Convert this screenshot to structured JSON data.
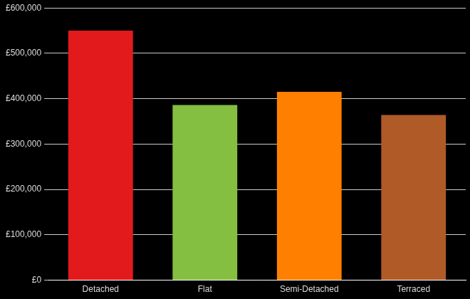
{
  "chart_data": {
    "type": "bar",
    "categories": [
      "Detached",
      "Flat",
      "Semi-Detached",
      "Terraced"
    ],
    "values": [
      550000,
      386000,
      415000,
      364000
    ],
    "colors": [
      "#e31a1c",
      "#84bf41",
      "#ff8000",
      "#b05a28"
    ],
    "ylim": [
      0,
      600000
    ],
    "yticks": [
      {
        "value": 0,
        "label": "£0"
      },
      {
        "value": 100000,
        "label": "£100,000"
      },
      {
        "value": 200000,
        "label": "£200,000"
      },
      {
        "value": 300000,
        "label": "£300,000"
      },
      {
        "value": 400000,
        "label": "£400,000"
      },
      {
        "value": 500000,
        "label": "£500,000"
      },
      {
        "value": 600000,
        "label": "£600,000"
      }
    ],
    "grid": true
  }
}
